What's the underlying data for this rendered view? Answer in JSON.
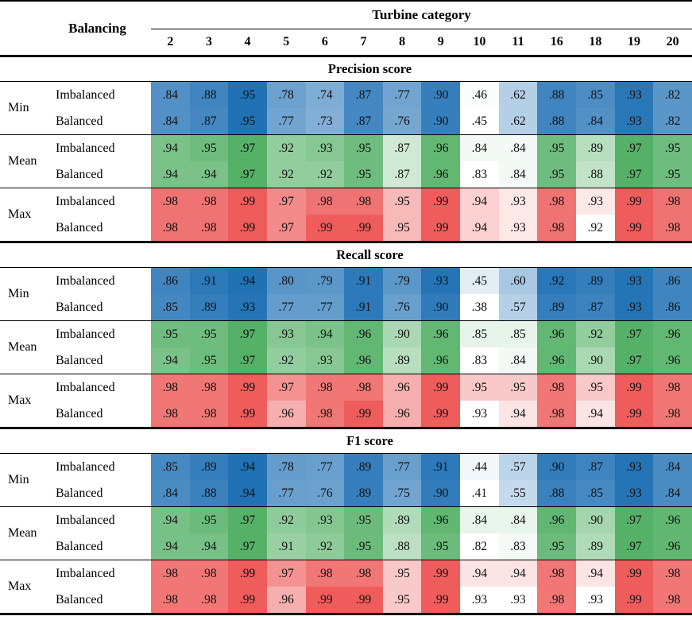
{
  "header": {
    "balancing_label": "Balancing",
    "turbine_category_label": "Turbine category",
    "columns": [
      "2",
      "3",
      "4",
      "5",
      "6",
      "7",
      "8",
      "9",
      "10",
      "11",
      "16",
      "18",
      "19",
      "20"
    ]
  },
  "colors": {
    "min_base": "#2171b5",
    "mean_base": "#56b168",
    "max_base": "#ee5c5c",
    "low": "#ffffff"
  },
  "sections": [
    {
      "title": "Precision score",
      "groups": [
        {
          "stat": "Min",
          "color_key": "min_base",
          "rows": [
            {
              "label": "Imbalanced",
              "values": [
                0.84,
                0.88,
                0.95,
                0.78,
                0.74,
                0.87,
                0.77,
                0.9,
                0.46,
                0.62,
                0.88,
                0.85,
                0.93,
                0.82
              ]
            },
            {
              "label": "Balanced",
              "values": [
                0.84,
                0.87,
                0.95,
                0.77,
                0.73,
                0.87,
                0.76,
                0.9,
                0.45,
                0.62,
                0.88,
                0.84,
                0.93,
                0.82
              ]
            }
          ]
        },
        {
          "stat": "Mean",
          "color_key": "mean_base",
          "rows": [
            {
              "label": "Imbalanced",
              "values": [
                0.94,
                0.95,
                0.97,
                0.92,
                0.93,
                0.95,
                0.87,
                0.96,
                0.84,
                0.84,
                0.95,
                0.89,
                0.97,
                0.95
              ]
            },
            {
              "label": "Balanced",
              "values": [
                0.94,
                0.94,
                0.97,
                0.92,
                0.92,
                0.95,
                0.87,
                0.96,
                0.83,
                0.84,
                0.95,
                0.88,
                0.97,
                0.95
              ]
            }
          ]
        },
        {
          "stat": "Max",
          "color_key": "max_base",
          "rows": [
            {
              "label": "Imbalanced",
              "values": [
                0.98,
                0.98,
                0.99,
                0.97,
                0.98,
                0.98,
                0.95,
                0.99,
                0.94,
                0.93,
                0.98,
                0.93,
                0.99,
                0.98
              ]
            },
            {
              "label": "Balanced",
              "values": [
                0.98,
                0.98,
                0.99,
                0.97,
                0.99,
                0.99,
                0.95,
                0.99,
                0.94,
                0.93,
                0.98,
                0.92,
                0.99,
                0.98
              ]
            }
          ]
        }
      ]
    },
    {
      "title": "Recall score",
      "groups": [
        {
          "stat": "Min",
          "color_key": "min_base",
          "rows": [
            {
              "label": "Imbalanced",
              "values": [
                0.86,
                0.91,
                0.94,
                0.8,
                0.79,
                0.91,
                0.79,
                0.93,
                0.45,
                0.6,
                0.92,
                0.89,
                0.93,
                0.86
              ]
            },
            {
              "label": "Balanced",
              "values": [
                0.85,
                0.89,
                0.93,
                0.77,
                0.77,
                0.91,
                0.76,
                0.9,
                0.38,
                0.57,
                0.89,
                0.87,
                0.93,
                0.86
              ]
            }
          ]
        },
        {
          "stat": "Mean",
          "color_key": "mean_base",
          "rows": [
            {
              "label": "Imbalanced",
              "values": [
                0.95,
                0.95,
                0.97,
                0.93,
                0.94,
                0.96,
                0.9,
                0.96,
                0.85,
                0.85,
                0.96,
                0.92,
                0.97,
                0.96
              ]
            },
            {
              "label": "Balanced",
              "values": [
                0.94,
                0.95,
                0.97,
                0.92,
                0.93,
                0.96,
                0.89,
                0.96,
                0.83,
                0.84,
                0.96,
                0.9,
                0.97,
                0.96
              ]
            }
          ]
        },
        {
          "stat": "Max",
          "color_key": "max_base",
          "rows": [
            {
              "label": "Imbalanced",
              "values": [
                0.98,
                0.98,
                0.99,
                0.97,
                0.98,
                0.98,
                0.96,
                0.99,
                0.95,
                0.95,
                0.98,
                0.95,
                0.99,
                0.98
              ]
            },
            {
              "label": "Balanced",
              "values": [
                0.98,
                0.98,
                0.99,
                0.96,
                0.98,
                0.99,
                0.96,
                0.99,
                0.93,
                0.94,
                0.98,
                0.94,
                0.99,
                0.98
              ]
            }
          ]
        }
      ]
    },
    {
      "title": "F1 score",
      "groups": [
        {
          "stat": "Min",
          "color_key": "min_base",
          "rows": [
            {
              "label": "Imbalanced",
              "values": [
                0.85,
                0.89,
                0.94,
                0.78,
                0.77,
                0.89,
                0.77,
                0.91,
                0.44,
                0.57,
                0.9,
                0.87,
                0.93,
                0.84
              ]
            },
            {
              "label": "Balanced",
              "values": [
                0.84,
                0.88,
                0.94,
                0.77,
                0.76,
                0.89,
                0.75,
                0.9,
                0.41,
                0.55,
                0.88,
                0.85,
                0.93,
                0.84
              ]
            }
          ]
        },
        {
          "stat": "Mean",
          "color_key": "mean_base",
          "rows": [
            {
              "label": "Imbalanced",
              "values": [
                0.94,
                0.95,
                0.97,
                0.92,
                0.93,
                0.95,
                0.89,
                0.96,
                0.84,
                0.84,
                0.96,
                0.9,
                0.97,
                0.96
              ]
            },
            {
              "label": "Balanced",
              "values": [
                0.94,
                0.94,
                0.97,
                0.91,
                0.92,
                0.95,
                0.88,
                0.95,
                0.82,
                0.83,
                0.95,
                0.89,
                0.97,
                0.96
              ]
            }
          ]
        },
        {
          "stat": "Max",
          "color_key": "max_base",
          "rows": [
            {
              "label": "Imbalanced",
              "values": [
                0.98,
                0.98,
                0.99,
                0.97,
                0.98,
                0.98,
                0.95,
                0.99,
                0.94,
                0.94,
                0.98,
                0.94,
                0.99,
                0.98
              ]
            },
            {
              "label": "Balanced",
              "values": [
                0.98,
                0.98,
                0.99,
                0.96,
                0.99,
                0.99,
                0.95,
                0.99,
                0.93,
                0.93,
                0.98,
                0.93,
                0.99,
                0.98
              ]
            }
          ]
        }
      ]
    }
  ]
}
